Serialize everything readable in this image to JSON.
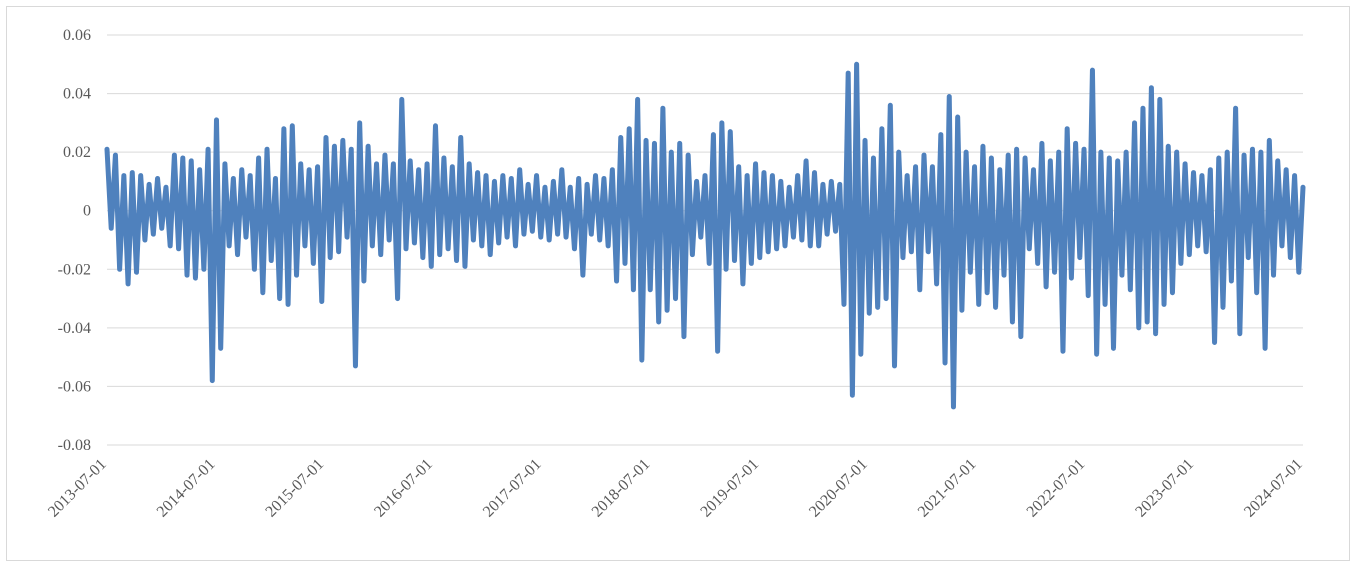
{
  "chart_data": {
    "type": "line",
    "title": "",
    "xlabel": "",
    "ylabel": "",
    "ylim": [
      -0.08,
      0.06
    ],
    "yticks": [
      "0.06",
      "0.04",
      "0.02",
      "0",
      "-0.02",
      "-0.04",
      "-0.06",
      "-0.08"
    ],
    "x_tick_labels": [
      "2013-07-01",
      "2014-07-01",
      "2015-07-01",
      "2016-07-01",
      "2017-07-01",
      "2018-07-01",
      "2019-07-01",
      "2020-07-01",
      "2021-07-01",
      "2022-07-01",
      "2023-07-01",
      "2024-07-01"
    ],
    "grid": true,
    "legend": "none",
    "series": [
      {
        "color": "#4f81bd",
        "x_start": "2013-07-01",
        "x_end": "2024-07-01",
        "values": [
          0.021,
          -0.006,
          0.019,
          -0.02,
          0.012,
          -0.025,
          0.013,
          -0.021,
          0.012,
          -0.01,
          0.009,
          -0.008,
          0.011,
          -0.006,
          0.008,
          -0.012,
          0.019,
          -0.013,
          0.018,
          -0.022,
          0.017,
          -0.023,
          0.014,
          -0.02,
          0.021,
          -0.058,
          0.031,
          -0.047,
          0.016,
          -0.012,
          0.011,
          -0.015,
          0.014,
          -0.009,
          0.012,
          -0.02,
          0.018,
          -0.028,
          0.021,
          -0.017,
          0.011,
          -0.03,
          0.028,
          -0.032,
          0.029,
          -0.022,
          0.016,
          -0.012,
          0.014,
          -0.018,
          0.015,
          -0.031,
          0.025,
          -0.016,
          0.022,
          -0.014,
          0.024,
          -0.009,
          0.021,
          -0.053,
          0.03,
          -0.024,
          0.022,
          -0.012,
          0.016,
          -0.015,
          0.019,
          -0.01,
          0.016,
          -0.03,
          0.038,
          -0.013,
          0.017,
          -0.011,
          0.014,
          -0.016,
          0.016,
          -0.019,
          0.029,
          -0.015,
          0.018,
          -0.013,
          0.015,
          -0.017,
          0.025,
          -0.019,
          0.016,
          -0.01,
          0.013,
          -0.012,
          0.012,
          -0.015,
          0.01,
          -0.011,
          0.012,
          -0.009,
          0.011,
          -0.012,
          0.014,
          -0.008,
          0.009,
          -0.007,
          0.012,
          -0.009,
          0.008,
          -0.01,
          0.01,
          -0.008,
          0.014,
          -0.009,
          0.008,
          -0.013,
          0.011,
          -0.022,
          0.009,
          -0.008,
          0.012,
          -0.01,
          0.011,
          -0.012,
          0.014,
          -0.024,
          0.025,
          -0.018,
          0.028,
          -0.027,
          0.038,
          -0.051,
          0.024,
          -0.027,
          0.023,
          -0.038,
          0.035,
          -0.034,
          0.02,
          -0.03,
          0.023,
          -0.043,
          0.019,
          -0.015,
          0.01,
          -0.009,
          0.012,
          -0.018,
          0.026,
          -0.048,
          0.03,
          -0.02,
          0.027,
          -0.017,
          0.015,
          -0.025,
          0.012,
          -0.018,
          0.016,
          -0.016,
          0.013,
          -0.014,
          0.012,
          -0.013,
          0.01,
          -0.012,
          0.008,
          -0.009,
          0.012,
          -0.01,
          0.017,
          -0.012,
          0.013,
          -0.012,
          0.009,
          -0.008,
          0.01,
          -0.007,
          0.009,
          -0.032,
          0.047,
          -0.063,
          0.05,
          -0.049,
          0.024,
          -0.035,
          0.018,
          -0.033,
          0.028,
          -0.03,
          0.036,
          -0.053,
          0.02,
          -0.016,
          0.012,
          -0.014,
          0.015,
          -0.027,
          0.019,
          -0.014,
          0.015,
          -0.025,
          0.026,
          -0.052,
          0.039,
          -0.067,
          0.032,
          -0.034,
          0.02,
          -0.021,
          0.015,
          -0.032,
          0.022,
          -0.028,
          0.018,
          -0.033,
          0.014,
          -0.022,
          0.019,
          -0.038,
          0.021,
          -0.043,
          0.018,
          -0.013,
          0.014,
          -0.018,
          0.023,
          -0.026,
          0.017,
          -0.021,
          0.02,
          -0.048,
          0.028,
          -0.023,
          0.023,
          -0.016,
          0.021,
          -0.029,
          0.048,
          -0.049,
          0.02,
          -0.032,
          0.018,
          -0.047,
          0.017,
          -0.022,
          0.02,
          -0.027,
          0.03,
          -0.04,
          0.035,
          -0.038,
          0.042,
          -0.042,
          0.038,
          -0.032,
          0.022,
          -0.028,
          0.02,
          -0.018,
          0.016,
          -0.015,
          0.013,
          -0.012,
          0.012,
          -0.014,
          0.014,
          -0.045,
          0.018,
          -0.033,
          0.02,
          -0.024,
          0.035,
          -0.042,
          0.019,
          -0.016,
          0.021,
          -0.028,
          0.02,
          -0.047,
          0.024,
          -0.022,
          0.017,
          -0.012,
          0.014,
          -0.016,
          0.012,
          -0.021,
          0.008
        ]
      }
    ]
  }
}
